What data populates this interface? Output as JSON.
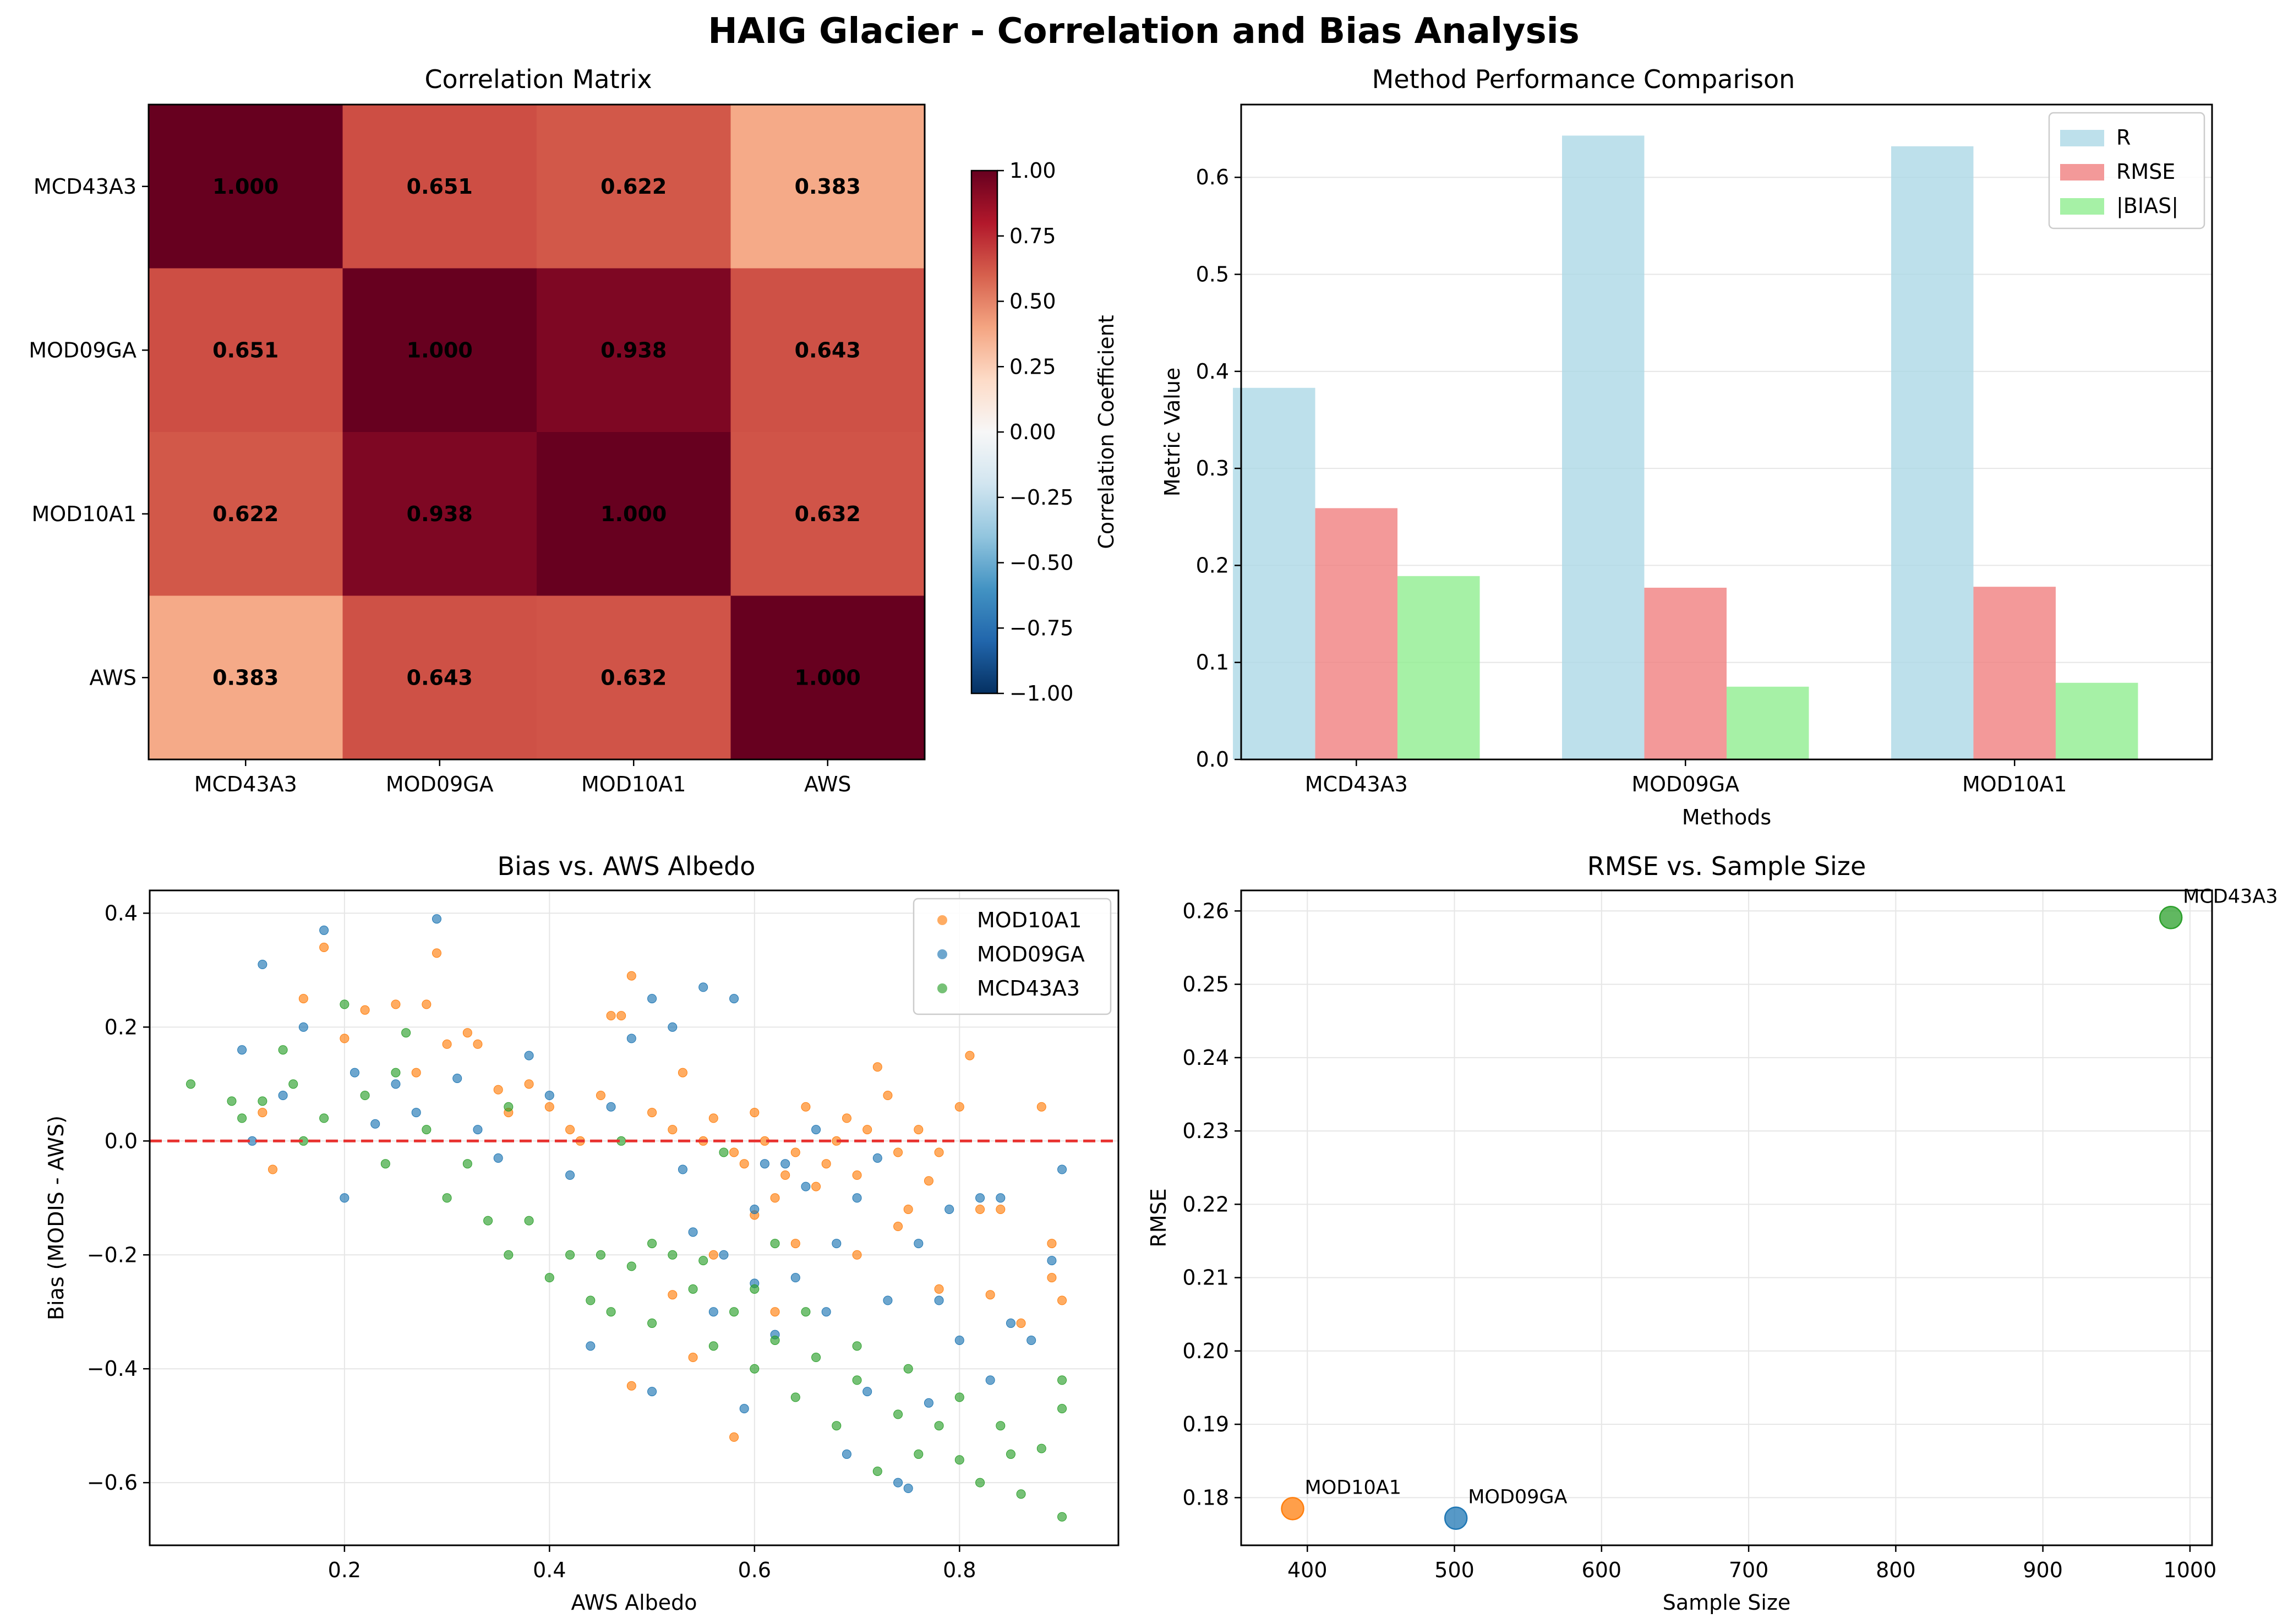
{
  "figure": {
    "title": "HAIG Glacier - Correlation and Bias Analysis"
  },
  "chart_data": [
    {
      "type": "heatmap",
      "title": "Correlation Matrix",
      "labels": [
        "MCD43A3",
        "MOD09GA",
        "MOD10A1",
        "AWS"
      ],
      "matrix": [
        [
          1.0,
          0.651,
          0.622,
          0.383
        ],
        [
          0.651,
          1.0,
          0.938,
          0.643
        ],
        [
          0.622,
          0.938,
          1.0,
          0.632
        ],
        [
          0.383,
          0.643,
          0.632,
          1.0
        ]
      ],
      "cell_labels": [
        [
          "1.000",
          "0.651",
          "0.622",
          "0.383"
        ],
        [
          "0.651",
          "1.000",
          "0.938",
          "0.643"
        ],
        [
          "0.622",
          "0.938",
          "1.000",
          "0.632"
        ],
        [
          "0.383",
          "0.643",
          "0.632",
          "1.000"
        ]
      ],
      "colorbar": {
        "label": "Correlation Coefficient",
        "range": [
          -1.0,
          1.0
        ],
        "ticks": [
          1.0,
          0.75,
          0.5,
          0.25,
          0.0,
          -0.25,
          -0.5,
          -0.75,
          -1.0
        ],
        "tick_labels": [
          "1.00",
          "0.75",
          "0.50",
          "0.25",
          "0.00",
          "−0.25",
          "−0.50",
          "−0.75",
          "−1.00"
        ],
        "colormap": "RdBu_r"
      }
    },
    {
      "type": "bar",
      "title": "Method Performance Comparison",
      "categories": [
        "MCD43A3",
        "MOD09GA",
        "MOD10A1"
      ],
      "xlabel": "Methods",
      "ylabel": "Metric Value",
      "ylim": [
        0,
        0.675
      ],
      "yticks": [
        "0.0",
        "0.1",
        "0.2",
        "0.3",
        "0.4",
        "0.5",
        "0.6"
      ],
      "grid": true,
      "legend_position": "top-right",
      "series": [
        {
          "name": "R",
          "values": [
            0.383,
            0.643,
            0.632
          ],
          "color": "#add8e6"
        },
        {
          "name": "RMSE",
          "values": [
            0.259,
            0.177,
            0.178
          ],
          "color": "#f08080"
        },
        {
          "name": "|BIAS|",
          "values": [
            0.189,
            0.075,
            0.079
          ],
          "color": "#90ee90"
        }
      ]
    },
    {
      "type": "scatter",
      "title": "Bias vs. AWS Albedo",
      "xlabel": "AWS Albedo",
      "ylabel": "Bias (MODIS - AWS)",
      "xlim": [
        0.01,
        0.955
      ],
      "ylim": [
        -0.71,
        0.44
      ],
      "xticks": [
        "0.2",
        "0.4",
        "0.6",
        "0.8"
      ],
      "yticks": [
        "0.4",
        "0.2",
        "0.0",
        "−0.2",
        "−0.4",
        "−0.6"
      ],
      "grid": true,
      "legend_position": "top-right",
      "reference_line": {
        "y": 0.0,
        "style": "dashed",
        "color": "#e8312f"
      },
      "series": [
        {
          "name": "MOD10A1",
          "color": "#ff7f0e",
          "points": [
            [
              0.12,
              0.05
            ],
            [
              0.13,
              -0.05
            ],
            [
              0.16,
              0.25
            ],
            [
              0.18,
              0.34
            ],
            [
              0.2,
              0.18
            ],
            [
              0.22,
              0.23
            ],
            [
              0.25,
              0.24
            ],
            [
              0.27,
              0.12
            ],
            [
              0.28,
              0.24
            ],
            [
              0.29,
              0.33
            ],
            [
              0.3,
              0.17
            ],
            [
              0.32,
              0.19
            ],
            [
              0.33,
              0.17
            ],
            [
              0.35,
              0.09
            ],
            [
              0.36,
              0.05
            ],
            [
              0.38,
              0.1
            ],
            [
              0.4,
              0.06
            ],
            [
              0.42,
              0.02
            ],
            [
              0.43,
              0.0
            ],
            [
              0.45,
              0.08
            ],
            [
              0.46,
              0.22
            ],
            [
              0.47,
              0.22
            ],
            [
              0.48,
              0.29
            ],
            [
              0.5,
              0.05
            ],
            [
              0.52,
              0.02
            ],
            [
              0.53,
              0.12
            ],
            [
              0.55,
              0.0
            ],
            [
              0.56,
              0.04
            ],
            [
              0.58,
              -0.02
            ],
            [
              0.59,
              -0.04
            ],
            [
              0.6,
              0.05
            ],
            [
              0.61,
              0.0
            ],
            [
              0.62,
              -0.1
            ],
            [
              0.63,
              -0.06
            ],
            [
              0.64,
              -0.02
            ],
            [
              0.65,
              0.06
            ],
            [
              0.66,
              -0.08
            ],
            [
              0.67,
              -0.04
            ],
            [
              0.68,
              0.0
            ],
            [
              0.69,
              0.04
            ],
            [
              0.7,
              -0.06
            ],
            [
              0.71,
              0.02
            ],
            [
              0.72,
              0.13
            ],
            [
              0.73,
              0.08
            ],
            [
              0.74,
              -0.02
            ],
            [
              0.75,
              -0.12
            ],
            [
              0.76,
              0.02
            ],
            [
              0.77,
              -0.07
            ],
            [
              0.78,
              -0.02
            ],
            [
              0.8,
              0.06
            ],
            [
              0.81,
              0.15
            ],
            [
              0.82,
              -0.12
            ],
            [
              0.83,
              -0.27
            ],
            [
              0.84,
              -0.12
            ],
            [
              0.88,
              0.06
            ],
            [
              0.89,
              -0.18
            ],
            [
              0.9,
              -0.28
            ],
            [
              0.48,
              -0.43
            ],
            [
              0.58,
              -0.52
            ],
            [
              0.52,
              -0.27
            ],
            [
              0.56,
              -0.2
            ],
            [
              0.6,
              -0.13
            ],
            [
              0.64,
              -0.18
            ],
            [
              0.7,
              -0.2
            ],
            [
              0.74,
              -0.15
            ],
            [
              0.78,
              -0.26
            ],
            [
              0.86,
              -0.32
            ],
            [
              0.89,
              -0.24
            ],
            [
              0.54,
              -0.38
            ],
            [
              0.62,
              -0.3
            ]
          ]
        },
        {
          "name": "MOD09GA",
          "color": "#1f77b4",
          "points": [
            [
              0.1,
              0.16
            ],
            [
              0.11,
              0.0
            ],
            [
              0.12,
              0.31
            ],
            [
              0.14,
              0.08
            ],
            [
              0.16,
              0.2
            ],
            [
              0.18,
              0.37
            ],
            [
              0.2,
              -0.1
            ],
            [
              0.21,
              0.12
            ],
            [
              0.23,
              0.03
            ],
            [
              0.25,
              0.1
            ],
            [
              0.27,
              0.05
            ],
            [
              0.29,
              0.39
            ],
            [
              0.31,
              0.11
            ],
            [
              0.33,
              0.02
            ],
            [
              0.35,
              -0.03
            ],
            [
              0.38,
              0.15
            ],
            [
              0.4,
              0.08
            ],
            [
              0.42,
              -0.06
            ],
            [
              0.44,
              -0.36
            ],
            [
              0.46,
              0.06
            ],
            [
              0.48,
              0.18
            ],
            [
              0.5,
              0.25
            ],
            [
              0.52,
              0.2
            ],
            [
              0.53,
              -0.05
            ],
            [
              0.55,
              0.27
            ],
            [
              0.57,
              -0.2
            ],
            [
              0.58,
              0.25
            ],
            [
              0.59,
              -0.47
            ],
            [
              0.6,
              -0.12
            ],
            [
              0.61,
              -0.04
            ],
            [
              0.62,
              -0.34
            ],
            [
              0.64,
              -0.24
            ],
            [
              0.65,
              -0.08
            ],
            [
              0.66,
              0.02
            ],
            [
              0.67,
              -0.3
            ],
            [
              0.68,
              -0.18
            ],
            [
              0.69,
              -0.55
            ],
            [
              0.7,
              -0.1
            ],
            [
              0.71,
              -0.44
            ],
            [
              0.72,
              -0.03
            ],
            [
              0.73,
              -0.28
            ],
            [
              0.74,
              -0.6
            ],
            [
              0.75,
              -0.61
            ],
            [
              0.76,
              -0.18
            ],
            [
              0.77,
              -0.46
            ],
            [
              0.78,
              -0.28
            ],
            [
              0.79,
              -0.12
            ],
            [
              0.8,
              -0.35
            ],
            [
              0.82,
              -0.1
            ],
            [
              0.83,
              -0.42
            ],
            [
              0.84,
              -0.1
            ],
            [
              0.85,
              -0.32
            ],
            [
              0.87,
              -0.35
            ],
            [
              0.89,
              -0.21
            ],
            [
              0.9,
              -0.05
            ],
            [
              0.5,
              -0.44
            ],
            [
              0.54,
              -0.16
            ],
            [
              0.56,
              -0.3
            ],
            [
              0.6,
              -0.25
            ],
            [
              0.63,
              -0.04
            ]
          ]
        },
        {
          "name": "MCD43A3",
          "color": "#2ca02c",
          "points": [
            [
              0.05,
              0.1
            ],
            [
              0.09,
              0.07
            ],
            [
              0.1,
              0.04
            ],
            [
              0.12,
              0.07
            ],
            [
              0.14,
              0.16
            ],
            [
              0.16,
              0.0
            ],
            [
              0.18,
              0.04
            ],
            [
              0.2,
              0.24
            ],
            [
              0.22,
              0.08
            ],
            [
              0.24,
              -0.04
            ],
            [
              0.26,
              0.19
            ],
            [
              0.28,
              0.02
            ],
            [
              0.3,
              -0.1
            ],
            [
              0.32,
              -0.04
            ],
            [
              0.34,
              -0.14
            ],
            [
              0.36,
              -0.2
            ],
            [
              0.38,
              -0.14
            ],
            [
              0.4,
              -0.24
            ],
            [
              0.42,
              -0.2
            ],
            [
              0.44,
              -0.28
            ],
            [
              0.46,
              -0.3
            ],
            [
              0.48,
              -0.22
            ],
            [
              0.5,
              -0.32
            ],
            [
              0.52,
              -0.2
            ],
            [
              0.54,
              -0.26
            ],
            [
              0.56,
              -0.36
            ],
            [
              0.58,
              -0.3
            ],
            [
              0.6,
              -0.4
            ],
            [
              0.62,
              -0.35
            ],
            [
              0.64,
              -0.45
            ],
            [
              0.66,
              -0.38
            ],
            [
              0.68,
              -0.5
            ],
            [
              0.7,
              -0.42
            ],
            [
              0.72,
              -0.58
            ],
            [
              0.74,
              -0.48
            ],
            [
              0.76,
              -0.55
            ],
            [
              0.78,
              -0.5
            ],
            [
              0.8,
              -0.56
            ],
            [
              0.82,
              -0.6
            ],
            [
              0.84,
              -0.5
            ],
            [
              0.86,
              -0.62
            ],
            [
              0.88,
              -0.54
            ],
            [
              0.9,
              -0.66
            ],
            [
              0.9,
              -0.47
            ],
            [
              0.9,
              -0.42
            ],
            [
              0.55,
              -0.21
            ],
            [
              0.5,
              -0.18
            ],
            [
              0.45,
              -0.2
            ],
            [
              0.6,
              -0.26
            ],
            [
              0.65,
              -0.3
            ],
            [
              0.7,
              -0.36
            ],
            [
              0.75,
              -0.4
            ],
            [
              0.8,
              -0.45
            ],
            [
              0.85,
              -0.55
            ],
            [
              0.57,
              -0.02
            ],
            [
              0.47,
              0.0
            ],
            [
              0.36,
              0.06
            ],
            [
              0.25,
              0.12
            ],
            [
              0.15,
              0.1
            ],
            [
              0.62,
              -0.18
            ]
          ]
        }
      ]
    },
    {
      "type": "scatter",
      "title": "RMSE vs. Sample Size",
      "xlabel": "Sample Size",
      "ylabel": "RMSE",
      "xlim": [
        355,
        1015
      ],
      "ylim": [
        0.1735,
        0.2628
      ],
      "xticks": [
        "400",
        "500",
        "600",
        "700",
        "800",
        "900",
        "1000"
      ],
      "yticks": [
        "0.18",
        "0.19",
        "0.20",
        "0.21",
        "0.22",
        "0.23",
        "0.24",
        "0.25",
        "0.26"
      ],
      "grid": true,
      "points": [
        {
          "label": "MOD10A1",
          "x": 390,
          "y": 0.1785,
          "color": "#ff7f0e"
        },
        {
          "label": "MOD09GA",
          "x": 501,
          "y": 0.1772,
          "color": "#1f77b4"
        },
        {
          "label": "MCD43A3",
          "x": 987,
          "y": 0.2591,
          "color": "#2ca02c"
        }
      ]
    }
  ]
}
